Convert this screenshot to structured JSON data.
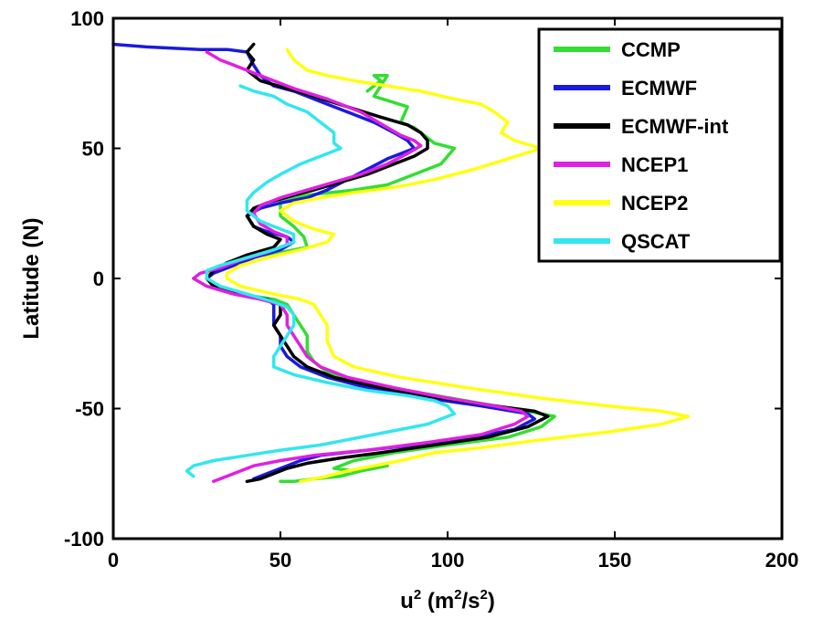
{
  "chart_data": {
    "type": "line",
    "xlabel": {
      "base": "u",
      "base_sup": "2",
      "unit_open": " (m",
      "unit_sup1": "2",
      "unit_mid": "/s",
      "unit_sup2": "2",
      "unit_close": ")"
    },
    "ylabel": "Latitude (N)",
    "xlim": [
      0,
      200
    ],
    "ylim": [
      -100,
      100
    ],
    "xticks": [
      "0",
      "50",
      "100",
      "150",
      "200"
    ],
    "yticks": [
      "-100",
      "-50",
      "0",
      "50",
      "100"
    ],
    "grid": false,
    "legend_position": "top-right",
    "series": [
      {
        "name": "CCMP",
        "color": "#33dd33",
        "points": [
          [
            76,
            72
          ],
          [
            80,
            76
          ],
          [
            78,
            78
          ],
          [
            82,
            78
          ],
          [
            78,
            70
          ],
          [
            88,
            66
          ],
          [
            86,
            60
          ],
          [
            90,
            58
          ],
          [
            96,
            52
          ],
          [
            102,
            50
          ],
          [
            98,
            44
          ],
          [
            90,
            40
          ],
          [
            82,
            36
          ],
          [
            72,
            34
          ],
          [
            58,
            32
          ],
          [
            50,
            30
          ],
          [
            50,
            24
          ],
          [
            54,
            20
          ],
          [
            57,
            16
          ],
          [
            58,
            12
          ],
          [
            50,
            10
          ],
          [
            40,
            8
          ],
          [
            34,
            6
          ],
          [
            30,
            3
          ],
          [
            28,
            0
          ],
          [
            30,
            -3
          ],
          [
            38,
            -6
          ],
          [
            48,
            -8
          ],
          [
            52,
            -10
          ],
          [
            54,
            -14
          ],
          [
            56,
            -18
          ],
          [
            58,
            -22
          ],
          [
            58,
            -28
          ],
          [
            60,
            -32
          ],
          [
            64,
            -36
          ],
          [
            74,
            -40
          ],
          [
            92,
            -44
          ],
          [
            110,
            -48
          ],
          [
            124,
            -51
          ],
          [
            132,
            -53
          ],
          [
            128,
            -57
          ],
          [
            118,
            -61
          ],
          [
            100,
            -64
          ],
          [
            84,
            -67
          ],
          [
            72,
            -70
          ],
          [
            66,
            -73
          ],
          [
            72,
            -74
          ],
          [
            78,
            -73
          ],
          [
            82,
            -72
          ],
          [
            74,
            -74
          ],
          [
            68,
            -76
          ],
          [
            60,
            -77
          ],
          [
            54,
            -78
          ],
          [
            50,
            -78
          ]
        ]
      },
      {
        "name": "ECMWF",
        "color": "#1a1add",
        "points": [
          [
            0,
            90
          ],
          [
            10,
            89
          ],
          [
            26,
            88
          ],
          [
            34,
            88
          ],
          [
            40,
            87
          ],
          [
            42,
            82
          ],
          [
            44,
            78
          ],
          [
            48,
            74
          ],
          [
            54,
            72
          ],
          [
            62,
            68
          ],
          [
            70,
            64
          ],
          [
            78,
            60
          ],
          [
            84,
            56
          ],
          [
            88,
            53
          ],
          [
            90,
            50
          ],
          [
            86,
            48
          ],
          [
            82,
            46
          ],
          [
            76,
            42
          ],
          [
            70,
            38
          ],
          [
            64,
            34
          ],
          [
            58,
            31
          ],
          [
            50,
            29
          ],
          [
            44,
            27
          ],
          [
            40,
            24
          ],
          [
            42,
            20
          ],
          [
            46,
            18
          ],
          [
            52,
            16
          ],
          [
            54,
            14
          ],
          [
            50,
            11
          ],
          [
            42,
            8
          ],
          [
            36,
            5
          ],
          [
            30,
            2
          ],
          [
            28,
            0
          ],
          [
            30,
            -3
          ],
          [
            38,
            -6
          ],
          [
            46,
            -8
          ],
          [
            48,
            -10
          ],
          [
            48,
            -14
          ],
          [
            48,
            -18
          ],
          [
            50,
            -22
          ],
          [
            50,
            -26
          ],
          [
            52,
            -30
          ],
          [
            56,
            -34
          ],
          [
            64,
            -38
          ],
          [
            76,
            -42
          ],
          [
            94,
            -46
          ],
          [
            110,
            -49
          ],
          [
            124,
            -52
          ],
          [
            126,
            -54
          ],
          [
            120,
            -58
          ],
          [
            108,
            -61
          ],
          [
            90,
            -64
          ],
          [
            76,
            -66
          ],
          [
            62,
            -68
          ],
          [
            56,
            -70
          ],
          [
            52,
            -72
          ],
          [
            48,
            -74
          ],
          [
            44,
            -76
          ],
          [
            42,
            -77
          ]
        ]
      },
      {
        "name": "ECMWF-int",
        "color": "#000000",
        "points": [
          [
            42,
            90
          ],
          [
            40,
            87
          ],
          [
            42,
            84
          ],
          [
            40,
            80
          ],
          [
            44,
            76
          ],
          [
            52,
            73
          ],
          [
            60,
            70
          ],
          [
            70,
            66
          ],
          [
            80,
            62
          ],
          [
            88,
            59
          ],
          [
            92,
            56
          ],
          [
            94,
            53
          ],
          [
            94,
            50
          ],
          [
            90,
            47
          ],
          [
            84,
            44
          ],
          [
            76,
            40
          ],
          [
            68,
            37
          ],
          [
            60,
            34
          ],
          [
            54,
            32
          ],
          [
            46,
            29
          ],
          [
            42,
            27
          ],
          [
            40,
            24
          ],
          [
            42,
            20
          ],
          [
            46,
            17
          ],
          [
            50,
            15
          ],
          [
            48,
            12
          ],
          [
            40,
            9
          ],
          [
            34,
            6
          ],
          [
            30,
            3
          ],
          [
            28,
            0
          ],
          [
            30,
            -3
          ],
          [
            38,
            -6
          ],
          [
            46,
            -8
          ],
          [
            50,
            -10
          ],
          [
            50,
            -14
          ],
          [
            48,
            -18
          ],
          [
            50,
            -22
          ],
          [
            52,
            -26
          ],
          [
            54,
            -30
          ],
          [
            58,
            -34
          ],
          [
            66,
            -38
          ],
          [
            80,
            -42
          ],
          [
            98,
            -46
          ],
          [
            114,
            -49
          ],
          [
            126,
            -51
          ],
          [
            130,
            -53
          ],
          [
            124,
            -57
          ],
          [
            112,
            -61
          ],
          [
            96,
            -64
          ],
          [
            80,
            -67
          ],
          [
            68,
            -69
          ],
          [
            58,
            -71
          ],
          [
            52,
            -73
          ],
          [
            48,
            -75
          ],
          [
            44,
            -77
          ],
          [
            40,
            -78
          ]
        ]
      },
      {
        "name": "NCEP1",
        "color": "#e020e0",
        "points": [
          [
            28,
            87
          ],
          [
            32,
            84
          ],
          [
            36,
            82
          ],
          [
            40,
            80
          ],
          [
            46,
            77
          ],
          [
            54,
            73
          ],
          [
            64,
            69
          ],
          [
            74,
            64
          ],
          [
            82,
            58
          ],
          [
            86,
            55
          ],
          [
            90,
            53
          ],
          [
            92,
            51
          ],
          [
            88,
            48
          ],
          [
            82,
            44
          ],
          [
            74,
            40
          ],
          [
            66,
            37
          ],
          [
            58,
            34
          ],
          [
            50,
            31
          ],
          [
            44,
            28
          ],
          [
            42,
            25
          ],
          [
            44,
            21
          ],
          [
            48,
            18
          ],
          [
            52,
            16
          ],
          [
            52,
            13
          ],
          [
            46,
            10
          ],
          [
            38,
            7
          ],
          [
            32,
            4
          ],
          [
            26,
            2
          ],
          [
            24,
            0
          ],
          [
            28,
            -3
          ],
          [
            36,
            -6
          ],
          [
            44,
            -8
          ],
          [
            50,
            -10
          ],
          [
            52,
            -14
          ],
          [
            52,
            -18
          ],
          [
            54,
            -22
          ],
          [
            56,
            -26
          ],
          [
            58,
            -30
          ],
          [
            62,
            -34
          ],
          [
            70,
            -38
          ],
          [
            84,
            -42
          ],
          [
            100,
            -46
          ],
          [
            114,
            -49
          ],
          [
            122,
            -51
          ],
          [
            124,
            -53
          ],
          [
            120,
            -56
          ],
          [
            110,
            -60
          ],
          [
            94,
            -63
          ],
          [
            76,
            -66
          ],
          [
            60,
            -68
          ],
          [
            50,
            -70
          ],
          [
            42,
            -72
          ],
          [
            36,
            -75
          ],
          [
            30,
            -78
          ]
        ]
      },
      {
        "name": "NCEP2",
        "color": "#ffff11",
        "points": [
          [
            52,
            88
          ],
          [
            54,
            84
          ],
          [
            58,
            80
          ],
          [
            64,
            78
          ],
          [
            72,
            76
          ],
          [
            82,
            74
          ],
          [
            92,
            72
          ],
          [
            102,
            69
          ],
          [
            110,
            67
          ],
          [
            114,
            64
          ],
          [
            118,
            60
          ],
          [
            116,
            56
          ],
          [
            120,
            53
          ],
          [
            128,
            50
          ],
          [
            118,
            46
          ],
          [
            108,
            42
          ],
          [
            96,
            38
          ],
          [
            84,
            35
          ],
          [
            72,
            33
          ],
          [
            62,
            31
          ],
          [
            54,
            29
          ],
          [
            50,
            26
          ],
          [
            54,
            22
          ],
          [
            60,
            19
          ],
          [
            66,
            17
          ],
          [
            64,
            14
          ],
          [
            56,
            11
          ],
          [
            46,
            8
          ],
          [
            38,
            5
          ],
          [
            34,
            2
          ],
          [
            34,
            0
          ],
          [
            38,
            -3
          ],
          [
            48,
            -6
          ],
          [
            56,
            -8
          ],
          [
            60,
            -10
          ],
          [
            62,
            -14
          ],
          [
            64,
            -18
          ],
          [
            64,
            -24
          ],
          [
            66,
            -30
          ],
          [
            72,
            -34
          ],
          [
            86,
            -38
          ],
          [
            106,
            -42
          ],
          [
            128,
            -46
          ],
          [
            148,
            -49
          ],
          [
            164,
            -51
          ],
          [
            172,
            -53
          ],
          [
            164,
            -56
          ],
          [
            148,
            -59
          ],
          [
            128,
            -62
          ],
          [
            110,
            -65
          ],
          [
            96,
            -67
          ],
          [
            86,
            -70
          ],
          [
            78,
            -72
          ],
          [
            70,
            -74
          ],
          [
            64,
            -76
          ],
          [
            56,
            -78
          ]
        ]
      },
      {
        "name": "QSCAT",
        "color": "#33e6ee",
        "points": [
          [
            38,
            74
          ],
          [
            42,
            72
          ],
          [
            48,
            70
          ],
          [
            52,
            67
          ],
          [
            58,
            64
          ],
          [
            62,
            60
          ],
          [
            66,
            56
          ],
          [
            66,
            52
          ],
          [
            68,
            50
          ],
          [
            62,
            47
          ],
          [
            56,
            44
          ],
          [
            50,
            40
          ],
          [
            46,
            37
          ],
          [
            42,
            33
          ],
          [
            40,
            30
          ],
          [
            40,
            26
          ],
          [
            44,
            22
          ],
          [
            50,
            19
          ],
          [
            54,
            17
          ],
          [
            54,
            14
          ],
          [
            48,
            11
          ],
          [
            40,
            8
          ],
          [
            32,
            5
          ],
          [
            28,
            3
          ],
          [
            28,
            0
          ],
          [
            32,
            -3
          ],
          [
            40,
            -6
          ],
          [
            48,
            -9
          ],
          [
            52,
            -11
          ],
          [
            54,
            -14
          ],
          [
            54,
            -18
          ],
          [
            52,
            -22
          ],
          [
            50,
            -26
          ],
          [
            48,
            -30
          ],
          [
            48,
            -34
          ],
          [
            54,
            -37
          ],
          [
            64,
            -40
          ],
          [
            76,
            -43
          ],
          [
            88,
            -45
          ],
          [
            96,
            -47
          ],
          [
            100,
            -49
          ],
          [
            102,
            -52
          ],
          [
            94,
            -56
          ],
          [
            78,
            -60
          ],
          [
            62,
            -64
          ],
          [
            50,
            -66
          ],
          [
            40,
            -68
          ],
          [
            30,
            -70
          ],
          [
            24,
            -72
          ],
          [
            22,
            -74
          ],
          [
            24,
            -76
          ]
        ]
      }
    ]
  }
}
